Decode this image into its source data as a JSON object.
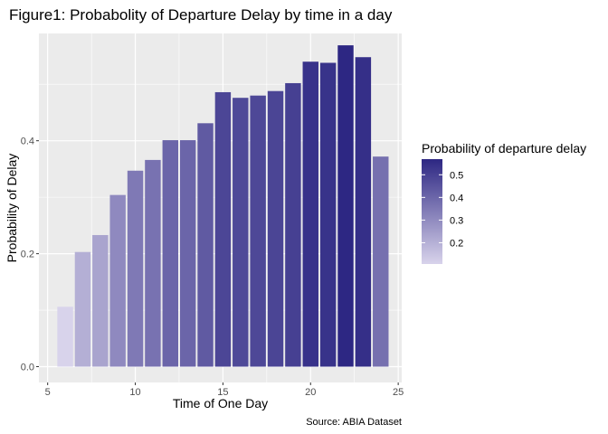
{
  "chart_data": {
    "type": "bar",
    "title": "Figure1: Probabolity of Departure Delay by time in a day",
    "xlabel": "Time of One Day",
    "ylabel": "Probability of Delay",
    "caption": "Source: ABIA Dataset",
    "xlim": [
      4.5,
      25.2
    ],
    "ylim": [
      -0.028,
      0.59
    ],
    "x_ticks": [
      5,
      10,
      15,
      20,
      25
    ],
    "y_ticks": [
      0.0,
      0.2,
      0.4
    ],
    "y_tick_labels": [
      "0.0",
      "0.2",
      "0.4"
    ],
    "x": [
      6,
      7,
      8,
      9,
      10,
      11,
      12,
      13,
      14,
      15,
      16,
      17,
      18,
      19,
      20,
      21,
      22,
      23,
      24
    ],
    "values": [
      0.106,
      0.203,
      0.233,
      0.304,
      0.347,
      0.366,
      0.401,
      0.401,
      0.431,
      0.486,
      0.476,
      0.48,
      0.488,
      0.502,
      0.54,
      0.538,
      0.569,
      0.548,
      0.372
    ],
    "grid": true,
    "legend": {
      "title": "Probability of departure delay",
      "position": "right",
      "type": "gradient",
      "ticks": [
        0.2,
        0.3,
        0.4,
        0.5
      ],
      "tick_labels": [
        "0.2",
        "0.3",
        "0.4",
        "0.5"
      ],
      "range": [
        0.106,
        0.569
      ],
      "color_low": "#d8d3eb",
      "color_high": "#2d2783"
    },
    "colors": {
      "panel": "#ebebeb",
      "grid": "#ffffff"
    }
  }
}
